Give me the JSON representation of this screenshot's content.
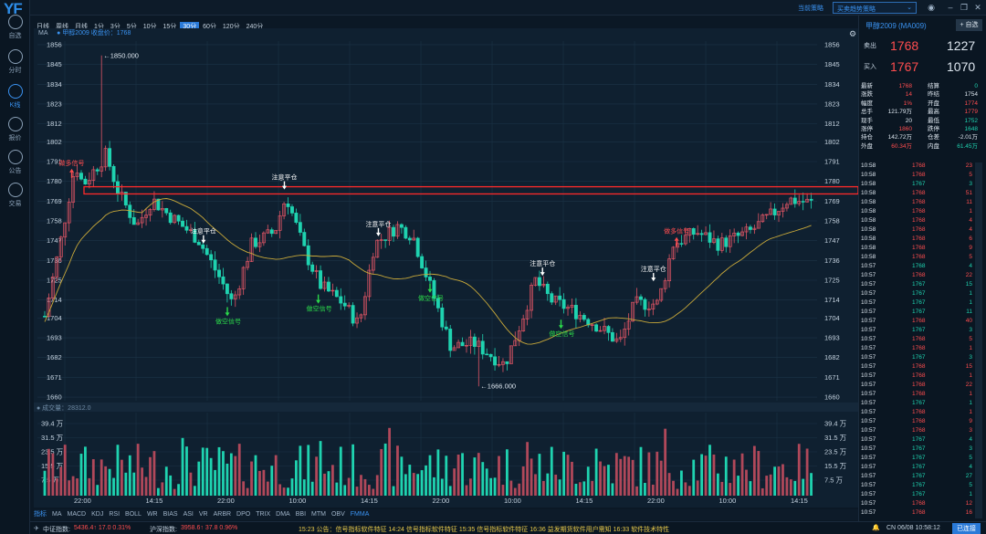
{
  "app": {
    "logo": "YF"
  },
  "nav": [
    {
      "label": "自选",
      "name": "nav-watchlist"
    },
    {
      "label": "分时",
      "name": "nav-timeshare"
    },
    {
      "label": "K线",
      "name": "nav-kline",
      "active": true
    },
    {
      "label": "报价",
      "name": "nav-quote"
    },
    {
      "label": "公告",
      "name": "nav-notice"
    },
    {
      "label": "交易",
      "name": "nav-trade"
    }
  ],
  "topbar": {
    "strategy_label": "当前策略",
    "strategy_value": "买卖趋势策略"
  },
  "periods": [
    "日线",
    "周线",
    "月线",
    "1分",
    "3分",
    "5分",
    "10分",
    "15分",
    "30分",
    "60分",
    "120分",
    "240分"
  ],
  "active_period": "30分",
  "ma_row": {
    "label": "MA",
    "info": "● 甲醇2009  收盘价：1768"
  },
  "chart_data": {
    "type": "candlestick",
    "y_ticks": [
      1856,
      1845,
      1834,
      1823,
      1812,
      1802,
      1791,
      1780,
      1769,
      1758,
      1747,
      1736,
      1725,
      1714,
      1704,
      1693,
      1682,
      1671,
      1660
    ],
    "ylim": [
      1658,
      1858
    ],
    "x_labels": [
      "22:00",
      "14:15",
      "22:00",
      "10:00",
      "14:15",
      "22:00",
      "10:00",
      "14:15",
      "22:00",
      "10:00",
      "14:15"
    ],
    "high_label": "←1850.000",
    "low_label": "←1666.000",
    "annotations": [
      {
        "text": "做多信号",
        "kind": "long",
        "x": 0.035,
        "y": 1786
      },
      {
        "text": "注意平仓",
        "kind": "close",
        "x": 0.311,
        "y": 1778
      },
      {
        "text": "注意平仓",
        "kind": "close",
        "x": 0.433,
        "y": 1752
      },
      {
        "text": "注意平仓",
        "kind": "close",
        "x": 0.206,
        "y": 1748
      },
      {
        "text": "做空信号",
        "kind": "short",
        "x": 0.237,
        "y": 1705
      },
      {
        "text": "做空信号",
        "kind": "short",
        "x": 0.355,
        "y": 1712
      },
      {
        "text": "做空信号",
        "kind": "short",
        "x": 0.5,
        "y": 1718
      },
      {
        "text": "注意平仓",
        "kind": "close",
        "x": 0.646,
        "y": 1730
      },
      {
        "text": "做空信号",
        "kind": "short",
        "x": 0.67,
        "y": 1698
      },
      {
        "text": "注意平仓",
        "kind": "close",
        "x": 0.79,
        "y": 1727
      },
      {
        "text": "做多信号",
        "kind": "long",
        "x": 0.82,
        "y": 1748
      }
    ],
    "volume_title": "● 成交量：28312.0",
    "vol_ticks": [
      "39.4 万",
      "31.5 万",
      "23.5 万",
      "15.5 万",
      "7.5 万"
    ],
    "colors": {
      "up": "#e05565",
      "down": "#1fd3b0",
      "ma": "#c9a93a",
      "box": "#ff2a2a"
    }
  },
  "indicators": [
    "指标",
    "MA",
    "MACD",
    "KDJ",
    "RSI",
    "BOLL",
    "WR",
    "BIAS",
    "ASI",
    "VR",
    "ARBR",
    "DPO",
    "TRIX",
    "DMA",
    "BBI",
    "MTM",
    "OBV",
    "FMMA"
  ],
  "active_indicator": "FMMA",
  "status": {
    "idx1_label": "中证指数:",
    "idx1_val": "5436.4↑ 17.0  0.31%",
    "idx2_label": "沪深指数:",
    "idx2_val": "3958.6↑ 37.8  0.96%",
    "news": "15:23  公告：信号指标软件特征     14:24  信号指标软件特征     15:35  信号指标软件特征     16:36  益发期货软件用户需知     16:33  软件技术特性",
    "clock": "CN 06/08 10:58:12",
    "conn": "已连接"
  },
  "panel": {
    "title": "甲醇2009 (MA009)",
    "add": "+ 自选",
    "sell_label": "卖出",
    "sell_price": "1768",
    "sell_vol": "1227",
    "buy_label": "买入",
    "buy_price": "1767",
    "buy_vol": "1070",
    "quote": [
      [
        "最新",
        "1768",
        "red",
        "结算",
        "0",
        "green"
      ],
      [
        "涨跌",
        "14",
        "red",
        "昨结",
        "1754",
        "white"
      ],
      [
        "幅度",
        "1%",
        "red",
        "开盘",
        "1774",
        "red"
      ],
      [
        "总手",
        "121.79万",
        "white",
        "最高",
        "1779",
        "red"
      ],
      [
        "现手",
        "20",
        "white",
        "最低",
        "1752",
        "green"
      ],
      [
        "涨停",
        "1860",
        "red",
        "跌停",
        "1648",
        "green"
      ],
      [
        "持仓",
        "142.72万",
        "white",
        "仓差",
        "-2.01万",
        "white"
      ],
      [
        "外盘",
        "60.34万",
        "red",
        "内盘",
        "61.45万",
        "green"
      ]
    ],
    "ticks": [
      [
        "10:58",
        "1768",
        "23",
        "r"
      ],
      [
        "10:58",
        "1768",
        "5",
        "r"
      ],
      [
        "10:58",
        "1767",
        "3",
        "g"
      ],
      [
        "10:58",
        "1768",
        "51",
        "r"
      ],
      [
        "10:58",
        "1768",
        "11",
        "r"
      ],
      [
        "10:58",
        "1768",
        "1",
        "r"
      ],
      [
        "10:58",
        "1768",
        "4",
        "r"
      ],
      [
        "10:58",
        "1768",
        "4",
        "r"
      ],
      [
        "10:58",
        "1768",
        "6",
        "r"
      ],
      [
        "10:58",
        "1768",
        "9",
        "r"
      ],
      [
        "10:58",
        "1768",
        "5",
        "r"
      ],
      [
        "10:57",
        "1768",
        "4",
        "g"
      ],
      [
        "10:57",
        "1768",
        "22",
        "r"
      ],
      [
        "10:57",
        "1767",
        "15",
        "g"
      ],
      [
        "10:57",
        "1767",
        "1",
        "g"
      ],
      [
        "10:57",
        "1767",
        "1",
        "g"
      ],
      [
        "10:57",
        "1767",
        "11",
        "g"
      ],
      [
        "10:57",
        "1768",
        "40",
        "r"
      ],
      [
        "10:57",
        "1767",
        "3",
        "g"
      ],
      [
        "10:57",
        "1768",
        "5",
        "r"
      ],
      [
        "10:57",
        "1768",
        "1",
        "r"
      ],
      [
        "10:57",
        "1767",
        "3",
        "g"
      ],
      [
        "10:57",
        "1768",
        "15",
        "r"
      ],
      [
        "10:57",
        "1768",
        "1",
        "r"
      ],
      [
        "10:57",
        "1768",
        "22",
        "r"
      ],
      [
        "10:57",
        "1768",
        "1",
        "r"
      ],
      [
        "10:57",
        "1767",
        "1",
        "g"
      ],
      [
        "10:57",
        "1768",
        "1",
        "r"
      ],
      [
        "10:57",
        "1768",
        "9",
        "r"
      ],
      [
        "10:57",
        "1768",
        "3",
        "r"
      ],
      [
        "10:57",
        "1767",
        "4",
        "g"
      ],
      [
        "10:57",
        "1767",
        "3",
        "g"
      ],
      [
        "10:57",
        "1767",
        "5",
        "g"
      ],
      [
        "10:57",
        "1767",
        "4",
        "g"
      ],
      [
        "10:57",
        "1767",
        "27",
        "g"
      ],
      [
        "10:57",
        "1767",
        "5",
        "g"
      ],
      [
        "10:57",
        "1767",
        "1",
        "g"
      ],
      [
        "10:57",
        "1768",
        "12",
        "r"
      ],
      [
        "10:57",
        "1768",
        "16",
        "r"
      ]
    ]
  }
}
